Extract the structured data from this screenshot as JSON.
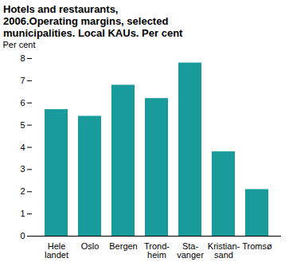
{
  "chart_data": {
    "type": "bar",
    "title": "Hotels and restaurants, 2006.Operating margins, selected municipalities. Local KAUs. Per cent",
    "y_label": "Per cent",
    "categories": [
      "Hele\nlandet",
      "Oslo",
      "Bergen",
      "Trond-\nheim",
      "Sta-\nvanger",
      "Kristian-\nsand",
      "Tromsø"
    ],
    "values": [
      5.7,
      5.4,
      6.8,
      6.2,
      7.8,
      3.8,
      2.1
    ],
    "color": "#1a9b9b",
    "ylim": [
      0,
      8
    ],
    "yticks": [
      0,
      1,
      2,
      3,
      4,
      5,
      6,
      7,
      8
    ],
    "grid": false
  }
}
